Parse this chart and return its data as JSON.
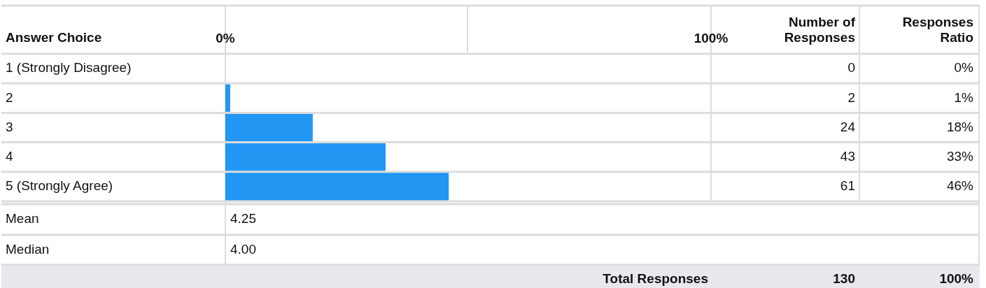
{
  "chart_data": {
    "type": "bar",
    "orientation": "horizontal",
    "ylabel": "Answer Choice",
    "categories": [
      "1 (Strongly Disagree)",
      "2",
      "3",
      "4",
      "5 (Strongly Agree)"
    ],
    "values": [
      0,
      1,
      18,
      33,
      46
    ],
    "color": "#2196f3",
    "value_labels": [
      "0%",
      "1%",
      "18%",
      "33%",
      "46%"
    ],
    "xlim": [
      0,
      100
    ],
    "xticks": [
      {
        "value": 0,
        "label": "0%"
      },
      {
        "value": 100,
        "label": "100%"
      }
    ],
    "grid": "y",
    "legend": false,
    "annotations": [
      "Number of Responses",
      "Responses Ratio",
      "0",
      "2",
      "24",
      "43",
      "61",
      "Mean",
      "4.25",
      "Median",
      "4.00",
      "Total Responses",
      "130",
      "100%"
    ]
  }
}
